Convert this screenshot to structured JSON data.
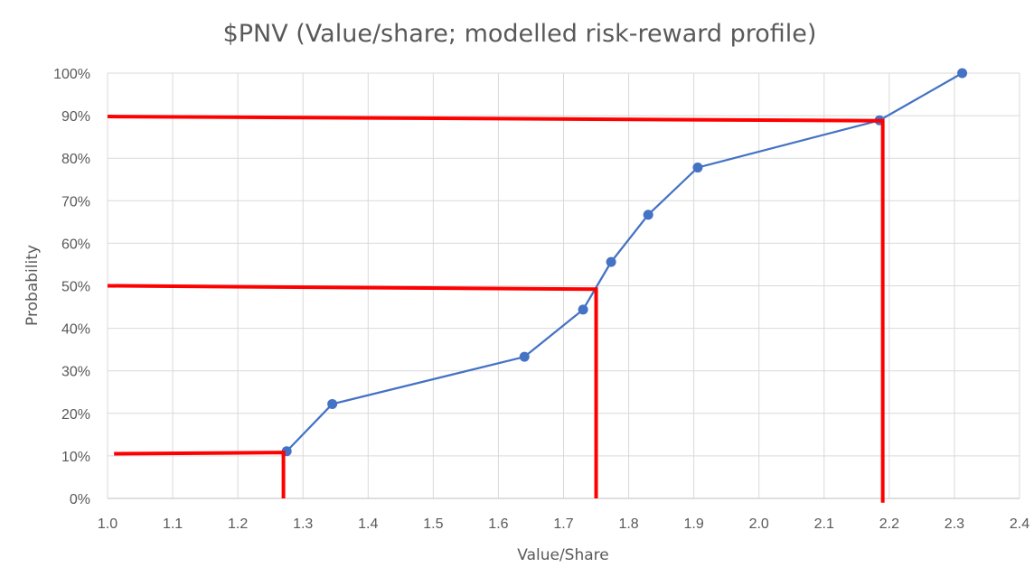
{
  "chart_data": {
    "type": "scatter",
    "title": "$PNV (Value/share; modelled risk-reward profile)",
    "xlabel": "Value/Share",
    "ylabel": "Probability",
    "xlim": [
      1.0,
      2.4
    ],
    "ylim": [
      0,
      1.0
    ],
    "x_ticks": [
      1.0,
      1.1,
      1.2,
      1.3,
      1.4,
      1.5,
      1.6,
      1.7,
      1.8,
      1.9,
      2.0,
      2.1,
      2.2,
      2.3,
      2.4
    ],
    "x_tick_labels": [
      "1.0",
      "1.1",
      "1.2",
      "1.3",
      "1.4",
      "1.5",
      "1.6",
      "1.7",
      "1.8",
      "1.9",
      "2.0",
      "2.1",
      "2.2",
      "2.3",
      "2.4"
    ],
    "y_ticks": [
      0,
      0.1,
      0.2,
      0.3,
      0.4,
      0.5,
      0.6,
      0.7,
      0.8,
      0.9,
      1.0
    ],
    "y_tick_labels": [
      "0%",
      "10%",
      "20%",
      "30%",
      "40%",
      "50%",
      "60%",
      "70%",
      "80%",
      "90%",
      "100%"
    ],
    "grid": true,
    "series": [
      {
        "color": "#4472C4",
        "marker": "circle",
        "points": [
          {
            "x": 1.275,
            "y": 0.111
          },
          {
            "x": 1.345,
            "y": 0.222
          },
          {
            "x": 1.64,
            "y": 0.333
          },
          {
            "x": 1.73,
            "y": 0.444
          },
          {
            "x": 1.773,
            "y": 0.556
          },
          {
            "x": 1.83,
            "y": 0.667
          },
          {
            "x": 1.906,
            "y": 0.778
          },
          {
            "x": 2.185,
            "y": 0.889
          },
          {
            "x": 2.312,
            "y": 1.0
          }
        ]
      }
    ],
    "annotations": [
      {
        "type": "percentile-guide",
        "color": "#FF0000",
        "path": [
          {
            "x": 1.01,
            "y": 0.105
          },
          {
            "x": 1.27,
            "y": 0.108
          },
          {
            "x": 1.27,
            "y": 0.0
          }
        ]
      },
      {
        "type": "percentile-guide",
        "color": "#FF0000",
        "path": [
          {
            "x": 1.0,
            "y": 0.5
          },
          {
            "x": 1.75,
            "y": 0.492
          },
          {
            "x": 1.75,
            "y": 0.0
          }
        ]
      },
      {
        "type": "percentile-guide",
        "color": "#FF0000",
        "path": [
          {
            "x": 1.0,
            "y": 0.898
          },
          {
            "x": 2.19,
            "y": 0.888
          },
          {
            "x": 2.19,
            "y": -0.01
          }
        ]
      }
    ],
    "colors": {
      "grid": "#D9D9D9",
      "axis": "#BFBFBF",
      "text": "#595959"
    }
  }
}
